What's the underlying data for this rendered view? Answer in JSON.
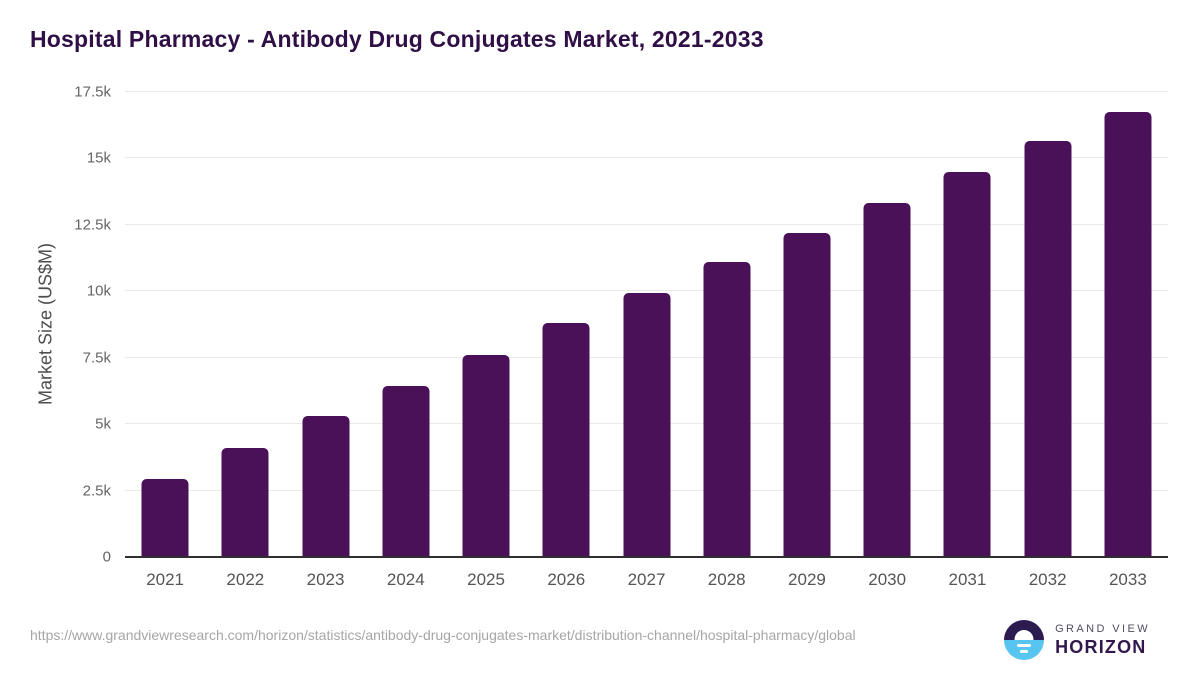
{
  "page": {
    "title": "Hospital Pharmacy - Antibody Drug Conjugates Market, 2021-2033"
  },
  "chart_data": {
    "type": "bar",
    "title": "Hospital Pharmacy - Antibody Drug Conjugates Market, 2021-2033",
    "xlabel": "",
    "ylabel": "Market Size (US$M)",
    "categories": [
      "2021",
      "2022",
      "2023",
      "2024",
      "2025",
      "2026",
      "2027",
      "2028",
      "2029",
      "2030",
      "2031",
      "2032",
      "2033"
    ],
    "values": [
      2950,
      4120,
      5320,
      6450,
      7610,
      8820,
      9930,
      11090,
      12200,
      13330,
      14500,
      15660,
      16750
    ],
    "ylim": [
      0,
      17500
    ],
    "y_ticks": [
      "0",
      "2.5k",
      "5k",
      "7.5k",
      "10k",
      "12.5k",
      "15k",
      "17.5k"
    ],
    "grid": true,
    "legend_position": "none",
    "bar_color": "#4a1058"
  },
  "footer": {
    "source_url": "https://www.grandviewresearch.com/horizon/statistics/antibody-drug-conjugates-market/distribution-channel/hospital-pharmacy/global",
    "logo": {
      "icon": "horizon-sunrise-icon",
      "name_top": "GRAND VIEW",
      "name_bottom": "HORIZON",
      "color_dark": "#2b1b4e",
      "color_blue": "#58c5f1"
    }
  },
  "colors": {
    "title_text": "#2f0f45",
    "bar": "#4a1058",
    "gridline": "#e9e9e9",
    "axis_line": "#2f2f2f"
  }
}
